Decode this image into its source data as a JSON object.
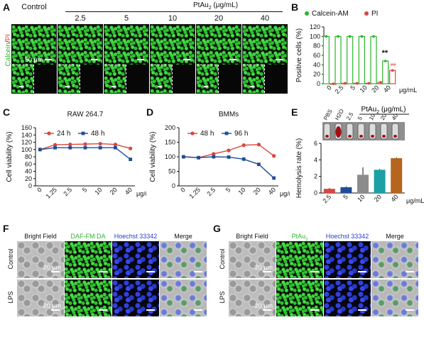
{
  "panels": {
    "A": "A",
    "B": "B",
    "C": "C",
    "D": "D",
    "E": "E",
    "F": "F",
    "G": "G"
  },
  "panelA": {
    "side_label_calcein": "Calcein",
    "side_label_sep": "/",
    "side_label_pi": "PI",
    "header": "PtAu",
    "header_sub": "2",
    "header_unit": " (μg/mL)",
    "columns": [
      "Control",
      "2.5",
      "5",
      "10",
      "20",
      "40"
    ],
    "scale_label": "50 μm"
  },
  "panelF": {
    "columns": [
      "Bright Field",
      "DAF-FM DA",
      "Hoechst 33342",
      "Merge"
    ],
    "rows": [
      "Control",
      "LPS"
    ],
    "scale_label": "20 μm"
  },
  "panelG": {
    "columns": [
      "Bright Field",
      "PtAu",
      "Hoechst 33342",
      "Merge"
    ],
    "ptau_sub": "2",
    "rows": [
      "Control",
      "LPS"
    ],
    "scale_label": "20 μm"
  },
  "colors": {
    "red": "#d9463e",
    "blue": "#1f4e99",
    "green": "#2ab52a"
  },
  "chart_data": [
    {
      "id": "B",
      "type": "bar",
      "categories": [
        "0",
        "2.5",
        "5",
        "10",
        "20",
        "40"
      ],
      "xunit": "μg/mL",
      "ylabel": "Positive cells (%)",
      "ylim": [
        0,
        120
      ],
      "yticks": [
        0,
        20,
        40,
        60,
        80,
        100,
        120
      ],
      "series": [
        {
          "name": "Calcein-AM",
          "values": [
            100,
            100,
            100,
            100,
            100,
            48
          ],
          "color": "#2ab52a"
        },
        {
          "name": "PI",
          "values": [
            0,
            1,
            1,
            1,
            3,
            28
          ],
          "color": "#d9463e"
        }
      ],
      "annotations": [
        "**",
        "##"
      ]
    },
    {
      "id": "C",
      "type": "line",
      "title": "RAW 264.7",
      "categories": [
        "0",
        "1.25",
        "2.5",
        "5",
        "10",
        "20",
        "40"
      ],
      "xunit": "μg/mL",
      "ylabel": "Cell viability (%)",
      "ylim": [
        0,
        160
      ],
      "yticks": [
        0,
        20,
        40,
        60,
        80,
        100,
        120,
        140,
        160
      ],
      "series": [
        {
          "name": "24 h",
          "values": [
            100,
            113,
            114,
            115,
            116,
            114,
            103
          ],
          "color": "#d9463e"
        },
        {
          "name": "48 h",
          "values": [
            100,
            105,
            105,
            105,
            105,
            105,
            73
          ],
          "color": "#1f4e99"
        }
      ]
    },
    {
      "id": "D",
      "type": "line",
      "title": "BMMs",
      "categories": [
        "0",
        "1.25",
        "2.5",
        "5",
        "10",
        "20",
        "40"
      ],
      "xunit": "μg/mL",
      "ylabel": "Cell viability (%)",
      "ylim": [
        0,
        200
      ],
      "yticks": [
        0,
        50,
        100,
        150,
        200
      ],
      "series": [
        {
          "name": "48 h",
          "values": [
            100,
            97,
            110,
            122,
            140,
            142,
            103
          ],
          "color": "#d9463e"
        },
        {
          "name": "96 h",
          "values": [
            100,
            97,
            100,
            99,
            92,
            74,
            27
          ],
          "color": "#1f4e99"
        }
      ]
    },
    {
      "id": "E",
      "type": "bar",
      "categories": [
        "2.5",
        "5",
        "10",
        "20",
        "40"
      ],
      "xunit": "μg/mL",
      "ylabel": "Hemolysis rate (%)",
      "ylim": [
        0,
        6
      ],
      "yticks": [
        0,
        2,
        4,
        6
      ],
      "values": [
        0.5,
        0.7,
        2.2,
        2.8,
        4.2
      ],
      "colors": [
        "#d9463e",
        "#1f4e99",
        "#8c8c8c",
        "#1aa0a5",
        "#b5651d"
      ],
      "tube_labels": [
        "PBS",
        "H2O",
        "2.5",
        "5",
        "10",
        "20",
        "40"
      ],
      "header": "PtAu",
      "header_sub": "2",
      "header_unit": " (μg/mL)"
    }
  ]
}
